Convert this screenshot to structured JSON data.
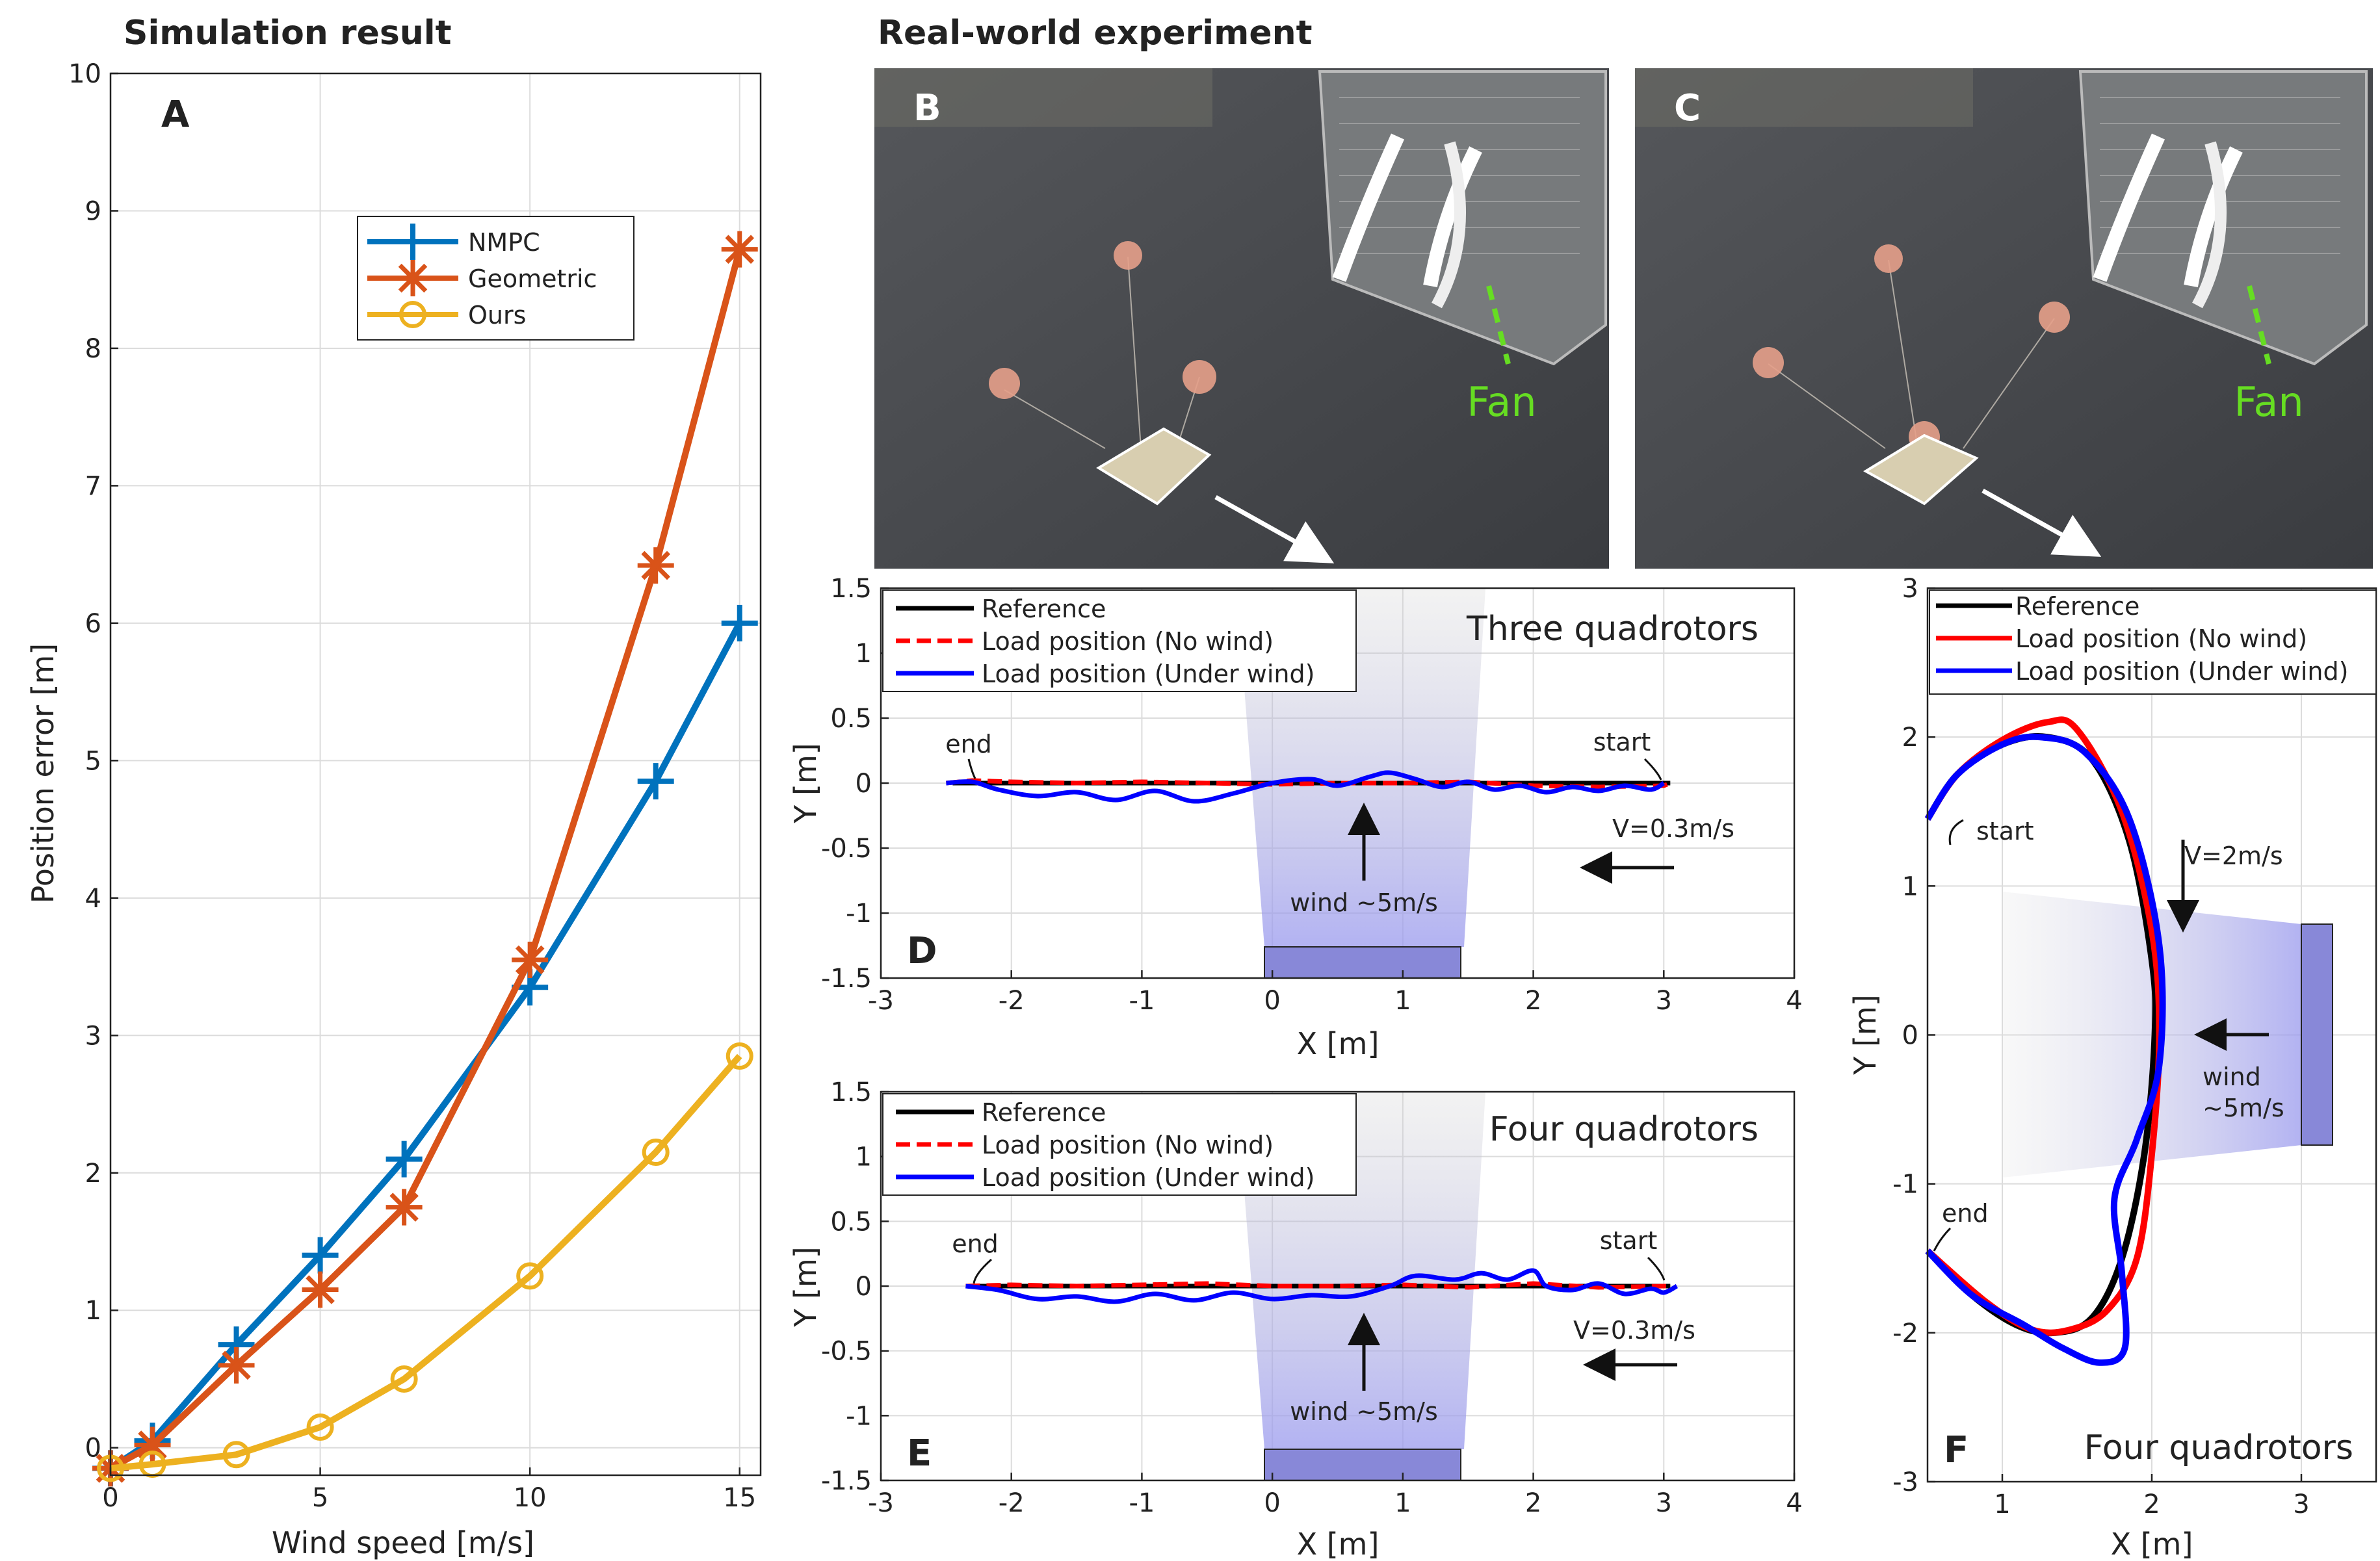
{
  "headings": {
    "left": "Simulation result",
    "right": "Real-world experiment"
  },
  "panel_letters": {
    "A": "A",
    "B": "B",
    "C": "C",
    "D": "D",
    "E": "E",
    "F": "F"
  },
  "photos": {
    "B": {
      "letter": "B",
      "label": "Fan"
    },
    "C": {
      "letter": "C",
      "label": "Fan"
    }
  },
  "colors": {
    "nmpc": "#0072BD",
    "geometric": "#D95319",
    "ours": "#EDB120",
    "reference": "#000000",
    "no_wind": "#FF0000",
    "under_wind": "#0000FF",
    "fan_label": "#66DD22",
    "fan_box": "#8888D8"
  },
  "chart_data": [
    {
      "id": "A",
      "type": "line",
      "xlabel": "Wind speed [m/s]",
      "ylabel": "Position error [m]",
      "xlim": [
        0,
        15.5
      ],
      "ylim": [
        -0.2,
        10
      ],
      "xticks": [
        0,
        5,
        10,
        15
      ],
      "yticks": [
        0,
        1,
        2,
        3,
        4,
        5,
        6,
        7,
        8,
        9,
        10
      ],
      "grid": true,
      "legend_position": "top-right",
      "series": [
        {
          "name": "NMPC",
          "marker": "plus",
          "x": [
            0,
            1,
            3,
            5,
            7,
            10,
            13,
            15
          ],
          "y": [
            -0.15,
            0.05,
            0.75,
            1.4,
            2.1,
            3.35,
            4.85,
            6.0
          ]
        },
        {
          "name": "Geometric",
          "marker": "asterisk",
          "x": [
            0,
            1,
            3,
            5,
            7,
            10,
            13,
            15
          ],
          "y": [
            -0.15,
            0.02,
            0.6,
            1.15,
            1.75,
            3.55,
            6.42,
            8.72
          ]
        },
        {
          "name": "Ours",
          "marker": "circle",
          "x": [
            0,
            1,
            3,
            5,
            7,
            10,
            13,
            15
          ],
          "y": [
            -0.15,
            -0.12,
            -0.05,
            0.15,
            0.5,
            1.25,
            2.15,
            2.85
          ]
        }
      ]
    },
    {
      "id": "D",
      "type": "line",
      "title": "Three quadrotors",
      "xlabel": "X [m]",
      "ylabel": "Y [m]",
      "xlim": [
        -3,
        4
      ],
      "ylim": [
        -1.5,
        1.5
      ],
      "xticks": [
        -3,
        -2,
        -1,
        0,
        1,
        2,
        3,
        4
      ],
      "yticks": [
        -1.5,
        -1,
        -0.5,
        0,
        0.5,
        1,
        1.5
      ],
      "grid": true,
      "legend_position": "top-left",
      "series": [
        {
          "name": "Reference",
          "x": [
            -2.45,
            3.05
          ],
          "y": [
            0,
            0
          ]
        },
        {
          "name": "Load position (No wind)",
          "x": [
            -2.5,
            -2.3,
            -2.0,
            -1.5,
            -1.0,
            -0.5,
            0.0,
            0.5,
            1.0,
            1.5,
            2.0,
            2.5,
            3.0,
            3.05
          ],
          "y": [
            0.0,
            0.02,
            0.01,
            0.0,
            0.01,
            0.0,
            -0.01,
            0.0,
            0.0,
            0.01,
            -0.02,
            -0.03,
            -0.02,
            0.0
          ]
        },
        {
          "name": "Load position (Under wind)",
          "x": [
            -2.5,
            -2.3,
            -2.1,
            -1.8,
            -1.5,
            -1.2,
            -0.9,
            -0.6,
            -0.3,
            0.0,
            0.3,
            0.5,
            0.75,
            0.9,
            1.1,
            1.3,
            1.5,
            1.7,
            1.9,
            2.1,
            2.3,
            2.5,
            2.7,
            2.9,
            3.0
          ],
          "y": [
            0.0,
            0.01,
            -0.05,
            -0.1,
            -0.07,
            -0.13,
            -0.06,
            -0.14,
            -0.08,
            0.0,
            0.03,
            -0.02,
            0.05,
            0.08,
            0.03,
            -0.03,
            0.01,
            -0.05,
            -0.02,
            -0.07,
            -0.03,
            -0.06,
            -0.02,
            -0.05,
            0.0
          ]
        }
      ],
      "annotations": [
        "start",
        "end",
        "V=0.3m/s",
        "wind ~5m/s"
      ]
    },
    {
      "id": "E",
      "type": "line",
      "title": "Four quadrotors",
      "xlabel": "X [m]",
      "ylabel": "Y [m]",
      "xlim": [
        -3,
        4
      ],
      "ylim": [
        -1.5,
        1.5
      ],
      "xticks": [
        -3,
        -2,
        -1,
        0,
        1,
        2,
        3,
        4
      ],
      "yticks": [
        -1.5,
        -1,
        -0.5,
        0,
        0.5,
        1,
        1.5
      ],
      "grid": true,
      "legend_position": "top-left",
      "series": [
        {
          "name": "Reference",
          "x": [
            -2.35,
            3.05
          ],
          "y": [
            0,
            0
          ]
        },
        {
          "name": "Load position (No wind)",
          "x": [
            -2.35,
            -2.0,
            -1.5,
            -1.0,
            -0.5,
            0.0,
            0.5,
            1.0,
            1.5,
            2.0,
            2.5,
            3.0,
            3.05
          ],
          "y": [
            0.0,
            0.01,
            0.0,
            0.01,
            0.02,
            0.0,
            0.0,
            0.01,
            -0.01,
            0.02,
            -0.01,
            0.0,
            0.0
          ]
        },
        {
          "name": "Load position (Under wind)",
          "x": [
            -2.35,
            -2.1,
            -1.8,
            -1.5,
            -1.2,
            -0.9,
            -0.6,
            -0.3,
            0.0,
            0.3,
            0.6,
            0.9,
            1.1,
            1.4,
            1.6,
            1.8,
            2.0,
            2.1,
            2.3,
            2.5,
            2.7,
            2.9,
            3.0,
            3.1
          ],
          "y": [
            0.0,
            -0.03,
            -0.1,
            -0.08,
            -0.12,
            -0.06,
            -0.11,
            -0.05,
            -0.1,
            -0.07,
            -0.08,
            0.0,
            0.08,
            0.05,
            0.1,
            0.05,
            0.12,
            0.0,
            -0.03,
            0.02,
            -0.06,
            -0.02,
            -0.05,
            0.0
          ]
        }
      ],
      "annotations": [
        "start",
        "end",
        "V=0.3m/s",
        "wind ~5m/s"
      ]
    },
    {
      "id": "F",
      "type": "line",
      "title": "Four quadrotors",
      "xlabel": "X [m]",
      "ylabel": "Y [m]",
      "xlim": [
        0.5,
        3.5
      ],
      "ylim": [
        -3,
        3
      ],
      "xticks": [
        1,
        2,
        3
      ],
      "yticks": [
        -3,
        -2,
        -1,
        0,
        1,
        2,
        3
      ],
      "grid": true,
      "legend_position": "top",
      "series": [
        {
          "name": "Reference",
          "x": [
            0.5,
            0.7,
            1.0,
            1.3,
            1.6,
            1.85,
            2.0,
            2.02,
            1.95,
            1.8,
            1.6,
            1.35,
            1.1,
            0.8,
            0.5
          ],
          "y": [
            1.45,
            1.75,
            1.95,
            2.0,
            1.85,
            1.3,
            0.5,
            0.0,
            -0.8,
            -1.5,
            -1.9,
            -2.0,
            -1.95,
            -1.75,
            -1.45
          ]
        },
        {
          "name": "Load position (No wind)",
          "x": [
            0.5,
            0.7,
            1.0,
            1.3,
            1.5,
            1.8,
            2.0,
            2.05,
            2.0,
            1.9,
            1.7,
            1.45,
            1.2,
            0.9,
            0.5
          ],
          "y": [
            1.45,
            1.75,
            1.98,
            2.1,
            2.05,
            1.5,
            0.7,
            0.0,
            -0.8,
            -1.5,
            -1.85,
            -1.98,
            -1.98,
            -1.8,
            -1.45
          ]
        },
        {
          "name": "Load position (Under wind)",
          "x": [
            0.5,
            0.7,
            1.0,
            1.25,
            1.55,
            1.85,
            2.05,
            2.05,
            1.9,
            1.75,
            1.8,
            1.82,
            1.65,
            1.4,
            1.15,
            0.8,
            0.5
          ],
          "y": [
            1.45,
            1.75,
            1.95,
            2.0,
            1.9,
            1.45,
            0.6,
            -0.2,
            -0.7,
            -1.1,
            -1.6,
            -2.1,
            -2.2,
            -2.1,
            -1.95,
            -1.75,
            -1.45
          ]
        }
      ],
      "annotations": [
        "start",
        "end",
        "V=2m/s",
        "wind ~5m/s"
      ]
    }
  ],
  "panel_texts": {
    "D": {
      "start": "start",
      "end": "end",
      "speed": "V=0.3m/s",
      "wind": "wind ~5m/s"
    },
    "E": {
      "start": "start",
      "end": "end",
      "speed": "V=0.3m/s",
      "wind": "wind ~5m/s"
    },
    "F": {
      "start": "start",
      "end": "end",
      "speed": "V=2m/s",
      "wind_line1": "wind",
      "wind_line2": "~5m/s"
    }
  }
}
